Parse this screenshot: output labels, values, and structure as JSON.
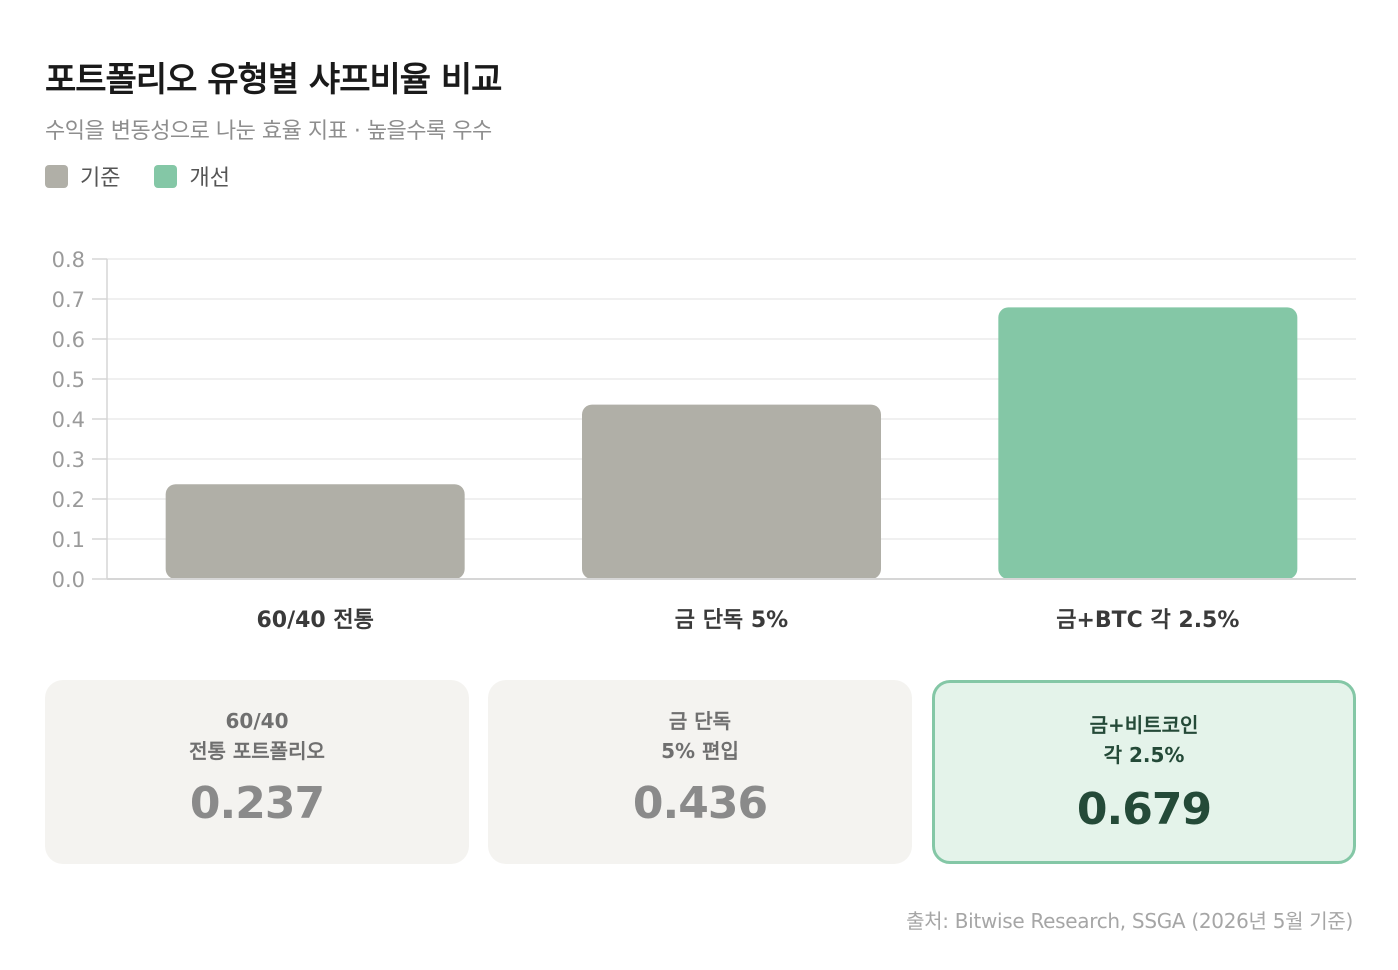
{
  "title": "포트폴리오 유형별 샤프비율 비교",
  "subtitle": "수익을 변동성으로 나눈 효율 지표 · 높을수록 우수",
  "legend": [
    {
      "label": "기준",
      "color": "#b0afa7"
    },
    {
      "label": "개선",
      "color": "#84c7a6"
    }
  ],
  "chart_data": {
    "type": "bar",
    "title": "포트폴리오 유형별 샤프비율 비교",
    "subtitle": "수익을 변동성으로 나눈 효율 지표 · 높을수록 우수",
    "categories": [
      "60/40 전통",
      "금 단독 5%",
      "금+BTC 각 2.5%"
    ],
    "values": [
      0.237,
      0.436,
      0.679
    ],
    "groups": [
      "기준",
      "기준",
      "개선"
    ],
    "colors": [
      "#b0afa7",
      "#b0afa7",
      "#84c7a6"
    ],
    "ylim": [
      0,
      0.8
    ],
    "yticks": [
      "0.0",
      "0.1",
      "0.2",
      "0.3",
      "0.4",
      "0.5",
      "0.6",
      "0.7",
      "0.8"
    ],
    "grid": true,
    "legend_position": "top-left"
  },
  "cards": [
    {
      "label": "60/40\n전통 포트폴리오",
      "value": "0.237"
    },
    {
      "label": "금 단독\n5% 편입",
      "value": "0.436"
    },
    {
      "label": "금+비트코인\n각 2.5%",
      "value": "0.679"
    }
  ],
  "source": "출처: Bitwise Research, SSGA (2026년 5월 기준)"
}
